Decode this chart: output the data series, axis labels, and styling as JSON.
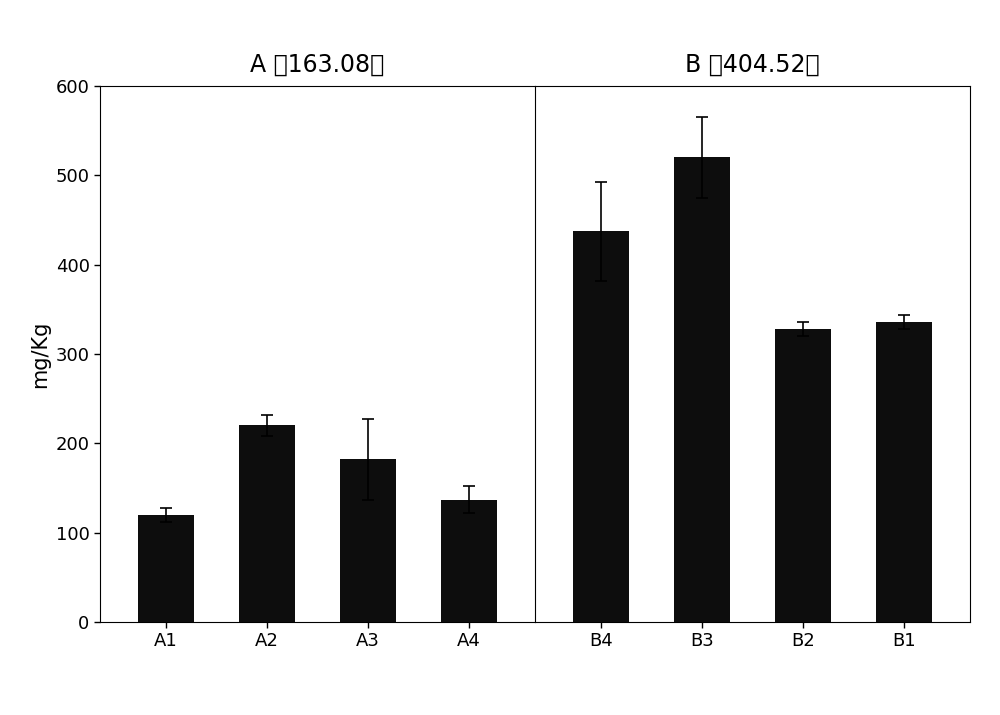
{
  "panel_A_title": "A （163.08）",
  "panel_B_title": "B （404.52）",
  "panel_A_categories": [
    "A1",
    "A2",
    "A3",
    "A4"
  ],
  "panel_B_categories": [
    "B4",
    "B3",
    "B2",
    "B1"
  ],
  "panel_A_values": [
    120,
    220,
    182,
    137
  ],
  "panel_B_values": [
    437,
    520,
    328,
    336
  ],
  "panel_A_errors": [
    8,
    12,
    45,
    15
  ],
  "panel_B_errors": [
    55,
    45,
    8,
    8
  ],
  "bar_color": "#0d0d0d",
  "bar_width": 0.55,
  "ylim": [
    0,
    600
  ],
  "yticks": [
    0,
    100,
    200,
    300,
    400,
    500,
    600
  ],
  "ylabel": "mg/Kg",
  "background_color": "#ffffff",
  "title_fontsize": 17,
  "tick_fontsize": 13,
  "ylabel_fontsize": 15,
  "error_capsize": 4,
  "error_linewidth": 1.2
}
